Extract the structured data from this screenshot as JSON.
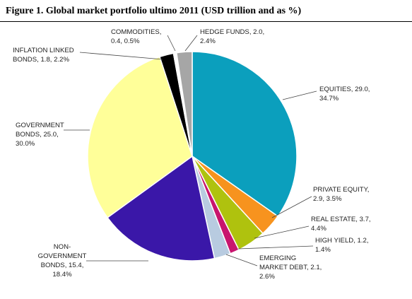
{
  "figure": {
    "title": "Figure 1. Global market portfolio ultimo 2011 (USD trillion and as %)"
  },
  "chart_data": {
    "type": "pie",
    "slices": [
      {
        "label": "EQUITIES",
        "value": 29.0,
        "percent": 34.7,
        "color": "#0b9fbd",
        "label_lines": [
          "EQUITIES, 29.0,",
          "34.7%"
        ]
      },
      {
        "label": "PRIVATE EQUITY",
        "value": 2.9,
        "percent": 3.5,
        "color": "#f7931e",
        "label_lines": [
          "PRIVATE EQUITY,",
          "2.9, 3.5%"
        ]
      },
      {
        "label": "REAL ESTATE",
        "value": 3.7,
        "percent": 4.4,
        "color": "#afc20e",
        "label_lines": [
          "REAL ESTATE, 3.7,",
          "4.4%"
        ]
      },
      {
        "label": "HIGH YIELD",
        "value": 1.2,
        "percent": 1.4,
        "color": "#c8156e",
        "label_lines": [
          "HIGH YIELD, 1.2,",
          "1.4%"
        ]
      },
      {
        "label": "EMERGING MARKET DEBT",
        "value": 2.1,
        "percent": 2.6,
        "color": "#b8cbe0",
        "label_lines": [
          "EMERGING",
          "MARKET DEBT, 2.1,",
          "2.6%"
        ]
      },
      {
        "label": "NON-GOVERNMENT BONDS",
        "value": 15.4,
        "percent": 18.4,
        "color": "#3a17a8",
        "label_lines": [
          "NON-",
          "GOVERNMENT",
          "BONDS, 15.4,",
          "18.4%"
        ]
      },
      {
        "label": "GOVERNMENT BONDS",
        "value": 25.0,
        "percent": 30.0,
        "color": "#ffff99",
        "label_lines": [
          "GOVERNMENT",
          "BONDS, 25.0,",
          "30.0%"
        ]
      },
      {
        "label": "INFLATION LINKED BONDS",
        "value": 1.8,
        "percent": 2.2,
        "color": "#000000",
        "label_lines": [
          "INFLATION LINKED",
          "BONDS, 1.8, 2.2%"
        ]
      },
      {
        "label": "COMMODITIES",
        "value": 0.4,
        "percent": 0.5,
        "color": "#ffffff",
        "label_lines": [
          "COMMODITIES,",
          "0.4, 0.5%"
        ]
      },
      {
        "label": "HEDGE FUNDS",
        "value": 2.0,
        "percent": 2.4,
        "color": "#a6a6a6",
        "label_lines": [
          "HEDGE FUNDS, 2.0,",
          "2.4%"
        ]
      }
    ],
    "start": "12 o'clock",
    "direction": "clockwise",
    "legend": "none"
  }
}
